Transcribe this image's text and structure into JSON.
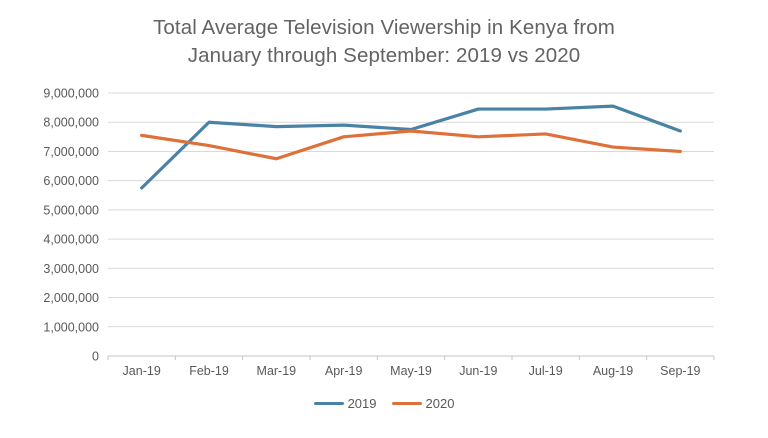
{
  "chart_data": {
    "type": "line",
    "title_lines": [
      "Total Average Television Viewership in Kenya from",
      "January through September: 2019 vs 2020"
    ],
    "categories": [
      "Jan-19",
      "Feb-19",
      "Mar-19",
      "Apr-19",
      "May-19",
      "Jun-19",
      "Jul-19",
      "Aug-19",
      "Sep-19"
    ],
    "series": [
      {
        "name": "2019",
        "color": "#4A82A6",
        "values": [
          5750000,
          8000000,
          7850000,
          7900000,
          7750000,
          8450000,
          8450000,
          8550000,
          7700000
        ]
      },
      {
        "name": "2020",
        "color": "#DE7139",
        "values": [
          7550000,
          7200000,
          6750000,
          7500000,
          7700000,
          7500000,
          7600000,
          7150000,
          7000000
        ]
      }
    ],
    "ylim": [
      0,
      9000000
    ],
    "y_tick_interval": 1000000,
    "y_tick_labels": [
      "0",
      "1,000,000",
      "2,000,000",
      "3,000,000",
      "4,000,000",
      "5,000,000",
      "6,000,000",
      "7,000,000",
      "8,000,000",
      "9,000,000"
    ],
    "xlabel": "",
    "ylabel": "",
    "grid": "horizontal",
    "legend_position": "bottom-center"
  },
  "style_colors": {
    "title_text": "#636363",
    "tick_text": "#595959",
    "gridline": "#D9D9D9",
    "axis_line": "#C6C6C6"
  }
}
